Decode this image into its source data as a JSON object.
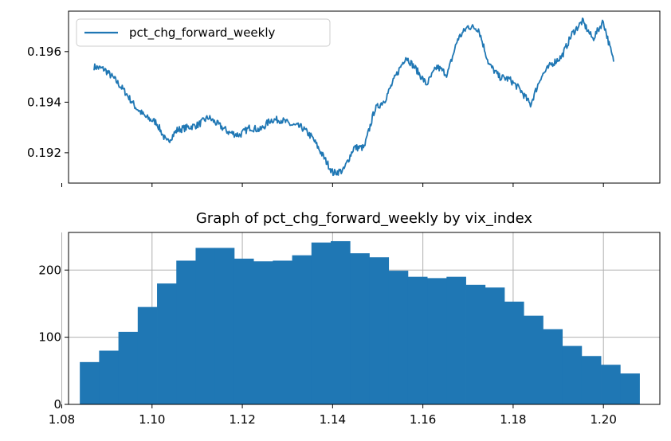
{
  "chart_data": [
    {
      "type": "line",
      "title": "",
      "xlabel": "",
      "ylabel": "",
      "legend": {
        "placement": "top-left",
        "entries": [
          "pct_chg_forward_weekly"
        ]
      },
      "ylim": [
        0.1908,
        0.1976
      ],
      "yticks": [
        0.192,
        0.194,
        0.196
      ],
      "ytick_labels": [
        "0.192",
        "0.194",
        "0.196"
      ],
      "xtick_labels_shown": false,
      "grid": false,
      "color": "#1f77b4",
      "series": [
        {
          "name": "pct_chg_forward_weekly",
          "x": [
            0,
            2,
            4,
            6,
            8,
            10,
            12,
            14,
            16,
            18,
            20,
            22,
            24,
            26,
            28,
            30,
            32,
            34,
            36,
            38,
            40,
            42,
            44,
            46,
            48,
            50,
            52,
            54,
            56,
            58,
            60,
            62,
            64,
            66,
            68,
            70,
            72,
            74,
            76,
            78,
            80,
            82,
            84,
            86,
            88,
            90,
            92,
            94,
            96,
            98,
            100
          ],
          "values": [
            0.1954,
            0.1953,
            0.1949,
            0.1944,
            0.1938,
            0.1934,
            0.1932,
            0.1924,
            0.1929,
            0.193,
            0.1931,
            0.1934,
            0.1931,
            0.1928,
            0.1927,
            0.193,
            0.1929,
            0.1933,
            0.1933,
            0.1931,
            0.193,
            0.1926,
            0.1919,
            0.1912,
            0.1913,
            0.1922,
            0.1922,
            0.1937,
            0.1941,
            0.195,
            0.1958,
            0.1953,
            0.1947,
            0.1954,
            0.1951,
            0.1965,
            0.197,
            0.1969,
            0.1955,
            0.195,
            0.1949,
            0.1945,
            0.1939,
            0.195,
            0.1955,
            0.1958,
            0.1967,
            0.1972,
            0.1965,
            0.1972,
            0.1956
          ]
        }
      ]
    },
    {
      "type": "bar",
      "subtype": "histogram",
      "title": "Graph of pct_chg_forward_weekly by vix_index",
      "xlabel": "",
      "ylabel": "",
      "xlim": [
        1.0815,
        1.2125
      ],
      "ylim": [
        0,
        256
      ],
      "xticks": [
        1.08,
        1.1,
        1.12,
        1.14,
        1.16,
        1.18,
        1.2
      ],
      "xtick_labels": [
        "1.08",
        "1.10",
        "1.12",
        "1.14",
        "1.16",
        "1.18",
        "1.20"
      ],
      "yticks": [
        0,
        100,
        200
      ],
      "ytick_labels": [
        "0",
        "100",
        "200"
      ],
      "grid": true,
      "color": "#1f77b4",
      "bin_start": 1.084,
      "bin_end": 1.208,
      "counts": [
        63,
        80,
        108,
        145,
        180,
        214,
        233,
        233,
        217,
        213,
        214,
        222,
        241,
        243,
        225,
        219,
        199,
        190,
        188,
        190,
        178,
        174,
        153,
        132,
        112,
        87,
        72,
        59,
        46
      ]
    }
  ]
}
